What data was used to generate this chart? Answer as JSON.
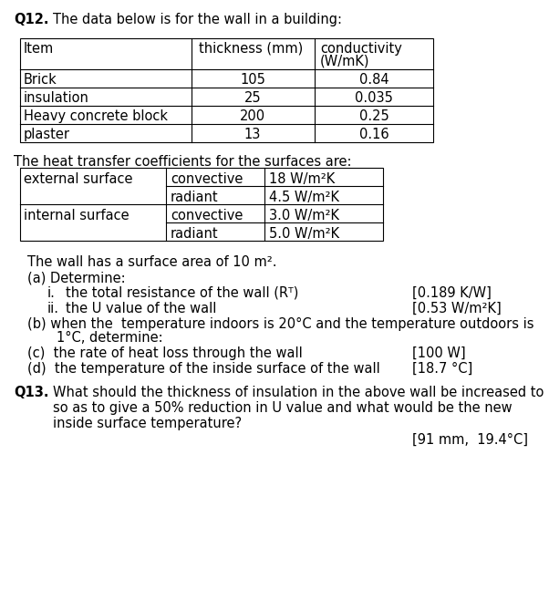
{
  "title_q12": "Q12.",
  "title_q12_text": "The data below is for the wall in a building:",
  "table1_rows": [
    [
      "Brick",
      "105",
      "0.84"
    ],
    [
      "insulation",
      "25",
      "0.035"
    ],
    [
      "Heavy concrete block",
      "200",
      "0.25"
    ],
    [
      "plaster",
      "13",
      "0.16"
    ]
  ],
  "heat_transfer_label": "The heat transfer coefficients for the surfaces are:",
  "table2_rows": [
    [
      "external surface",
      "convective",
      "18 W/m²K"
    ],
    [
      "",
      "radiant",
      "4.5 W/m²K"
    ],
    [
      "internal surface",
      "convective",
      "3.0 W/m²K"
    ],
    [
      "",
      "radiant",
      "5.0 W/m²K"
    ]
  ],
  "surface_area_text": "The wall has a surface area of 10 m².",
  "part_a": "(a) Determine:",
  "part_i_label": "i.",
  "part_i_text": "the total resistance of the wall (Rᵀ)",
  "part_i_ans": "[0.189 K/W]",
  "part_ii_label": "ii.",
  "part_ii_text": "the U value of the wall",
  "part_ii_ans": "[0.53 W/m²K]",
  "part_b1": "(b) when the  temperature indoors is 20°C and the temperature outdoors is",
  "part_b2": "1°C, determine:",
  "part_c": "(c)  the rate of heat loss through the wall",
  "part_c_ans": "[100 W]",
  "part_d": "(d)  the temperature of the inside surface of the wall",
  "part_d_ans": "[18.7 °C]",
  "q13_label": "Q13.",
  "q13_text1": "What should the thickness of insulation in the above wall be increased to",
  "q13_text2": "so as to give a 50% reduction in U value and what would be the new",
  "q13_text3": "inside surface temperature?",
  "q13_ans": "[91 mm,  19.4°C]",
  "bg_color": "#ffffff",
  "font_size": 10.5
}
